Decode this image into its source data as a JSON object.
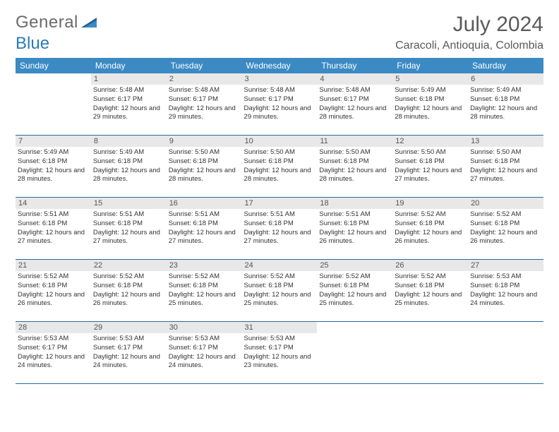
{
  "logo": {
    "word1": "General",
    "word2": "Blue"
  },
  "title": "July 2024",
  "location": "Caracoli, Antioquia, Colombia",
  "colors": {
    "header_bg": "#3b8ac4",
    "header_text": "#ffffff",
    "daynum_bg": "#e8e8e8",
    "row_border": "#2a6a9a",
    "logo_gray": "#6a6a6a",
    "logo_blue": "#2a7ab8"
  },
  "weekdays": [
    "Sunday",
    "Monday",
    "Tuesday",
    "Wednesday",
    "Thursday",
    "Friday",
    "Saturday"
  ],
  "weeks": [
    [
      {
        "n": "",
        "sr": "",
        "ss": "",
        "dl": ""
      },
      {
        "n": "1",
        "sr": "Sunrise: 5:48 AM",
        "ss": "Sunset: 6:17 PM",
        "dl": "Daylight: 12 hours and 29 minutes."
      },
      {
        "n": "2",
        "sr": "Sunrise: 5:48 AM",
        "ss": "Sunset: 6:17 PM",
        "dl": "Daylight: 12 hours and 29 minutes."
      },
      {
        "n": "3",
        "sr": "Sunrise: 5:48 AM",
        "ss": "Sunset: 6:17 PM",
        "dl": "Daylight: 12 hours and 29 minutes."
      },
      {
        "n": "4",
        "sr": "Sunrise: 5:48 AM",
        "ss": "Sunset: 6:17 PM",
        "dl": "Daylight: 12 hours and 28 minutes."
      },
      {
        "n": "5",
        "sr": "Sunrise: 5:49 AM",
        "ss": "Sunset: 6:18 PM",
        "dl": "Daylight: 12 hours and 28 minutes."
      },
      {
        "n": "6",
        "sr": "Sunrise: 5:49 AM",
        "ss": "Sunset: 6:18 PM",
        "dl": "Daylight: 12 hours and 28 minutes."
      }
    ],
    [
      {
        "n": "7",
        "sr": "Sunrise: 5:49 AM",
        "ss": "Sunset: 6:18 PM",
        "dl": "Daylight: 12 hours and 28 minutes."
      },
      {
        "n": "8",
        "sr": "Sunrise: 5:49 AM",
        "ss": "Sunset: 6:18 PM",
        "dl": "Daylight: 12 hours and 28 minutes."
      },
      {
        "n": "9",
        "sr": "Sunrise: 5:50 AM",
        "ss": "Sunset: 6:18 PM",
        "dl": "Daylight: 12 hours and 28 minutes."
      },
      {
        "n": "10",
        "sr": "Sunrise: 5:50 AM",
        "ss": "Sunset: 6:18 PM",
        "dl": "Daylight: 12 hours and 28 minutes."
      },
      {
        "n": "11",
        "sr": "Sunrise: 5:50 AM",
        "ss": "Sunset: 6:18 PM",
        "dl": "Daylight: 12 hours and 28 minutes."
      },
      {
        "n": "12",
        "sr": "Sunrise: 5:50 AM",
        "ss": "Sunset: 6:18 PM",
        "dl": "Daylight: 12 hours and 27 minutes."
      },
      {
        "n": "13",
        "sr": "Sunrise: 5:50 AM",
        "ss": "Sunset: 6:18 PM",
        "dl": "Daylight: 12 hours and 27 minutes."
      }
    ],
    [
      {
        "n": "14",
        "sr": "Sunrise: 5:51 AM",
        "ss": "Sunset: 6:18 PM",
        "dl": "Daylight: 12 hours and 27 minutes."
      },
      {
        "n": "15",
        "sr": "Sunrise: 5:51 AM",
        "ss": "Sunset: 6:18 PM",
        "dl": "Daylight: 12 hours and 27 minutes."
      },
      {
        "n": "16",
        "sr": "Sunrise: 5:51 AM",
        "ss": "Sunset: 6:18 PM",
        "dl": "Daylight: 12 hours and 27 minutes."
      },
      {
        "n": "17",
        "sr": "Sunrise: 5:51 AM",
        "ss": "Sunset: 6:18 PM",
        "dl": "Daylight: 12 hours and 27 minutes."
      },
      {
        "n": "18",
        "sr": "Sunrise: 5:51 AM",
        "ss": "Sunset: 6:18 PM",
        "dl": "Daylight: 12 hours and 26 minutes."
      },
      {
        "n": "19",
        "sr": "Sunrise: 5:52 AM",
        "ss": "Sunset: 6:18 PM",
        "dl": "Daylight: 12 hours and 26 minutes."
      },
      {
        "n": "20",
        "sr": "Sunrise: 5:52 AM",
        "ss": "Sunset: 6:18 PM",
        "dl": "Daylight: 12 hours and 26 minutes."
      }
    ],
    [
      {
        "n": "21",
        "sr": "Sunrise: 5:52 AM",
        "ss": "Sunset: 6:18 PM",
        "dl": "Daylight: 12 hours and 26 minutes."
      },
      {
        "n": "22",
        "sr": "Sunrise: 5:52 AM",
        "ss": "Sunset: 6:18 PM",
        "dl": "Daylight: 12 hours and 26 minutes."
      },
      {
        "n": "23",
        "sr": "Sunrise: 5:52 AM",
        "ss": "Sunset: 6:18 PM",
        "dl": "Daylight: 12 hours and 25 minutes."
      },
      {
        "n": "24",
        "sr": "Sunrise: 5:52 AM",
        "ss": "Sunset: 6:18 PM",
        "dl": "Daylight: 12 hours and 25 minutes."
      },
      {
        "n": "25",
        "sr": "Sunrise: 5:52 AM",
        "ss": "Sunset: 6:18 PM",
        "dl": "Daylight: 12 hours and 25 minutes."
      },
      {
        "n": "26",
        "sr": "Sunrise: 5:52 AM",
        "ss": "Sunset: 6:18 PM",
        "dl": "Daylight: 12 hours and 25 minutes."
      },
      {
        "n": "27",
        "sr": "Sunrise: 5:53 AM",
        "ss": "Sunset: 6:18 PM",
        "dl": "Daylight: 12 hours and 24 minutes."
      }
    ],
    [
      {
        "n": "28",
        "sr": "Sunrise: 5:53 AM",
        "ss": "Sunset: 6:17 PM",
        "dl": "Daylight: 12 hours and 24 minutes."
      },
      {
        "n": "29",
        "sr": "Sunrise: 5:53 AM",
        "ss": "Sunset: 6:17 PM",
        "dl": "Daylight: 12 hours and 24 minutes."
      },
      {
        "n": "30",
        "sr": "Sunrise: 5:53 AM",
        "ss": "Sunset: 6:17 PM",
        "dl": "Daylight: 12 hours and 24 minutes."
      },
      {
        "n": "31",
        "sr": "Sunrise: 5:53 AM",
        "ss": "Sunset: 6:17 PM",
        "dl": "Daylight: 12 hours and 23 minutes."
      },
      {
        "n": "",
        "sr": "",
        "ss": "",
        "dl": ""
      },
      {
        "n": "",
        "sr": "",
        "ss": "",
        "dl": ""
      },
      {
        "n": "",
        "sr": "",
        "ss": "",
        "dl": ""
      }
    ]
  ]
}
